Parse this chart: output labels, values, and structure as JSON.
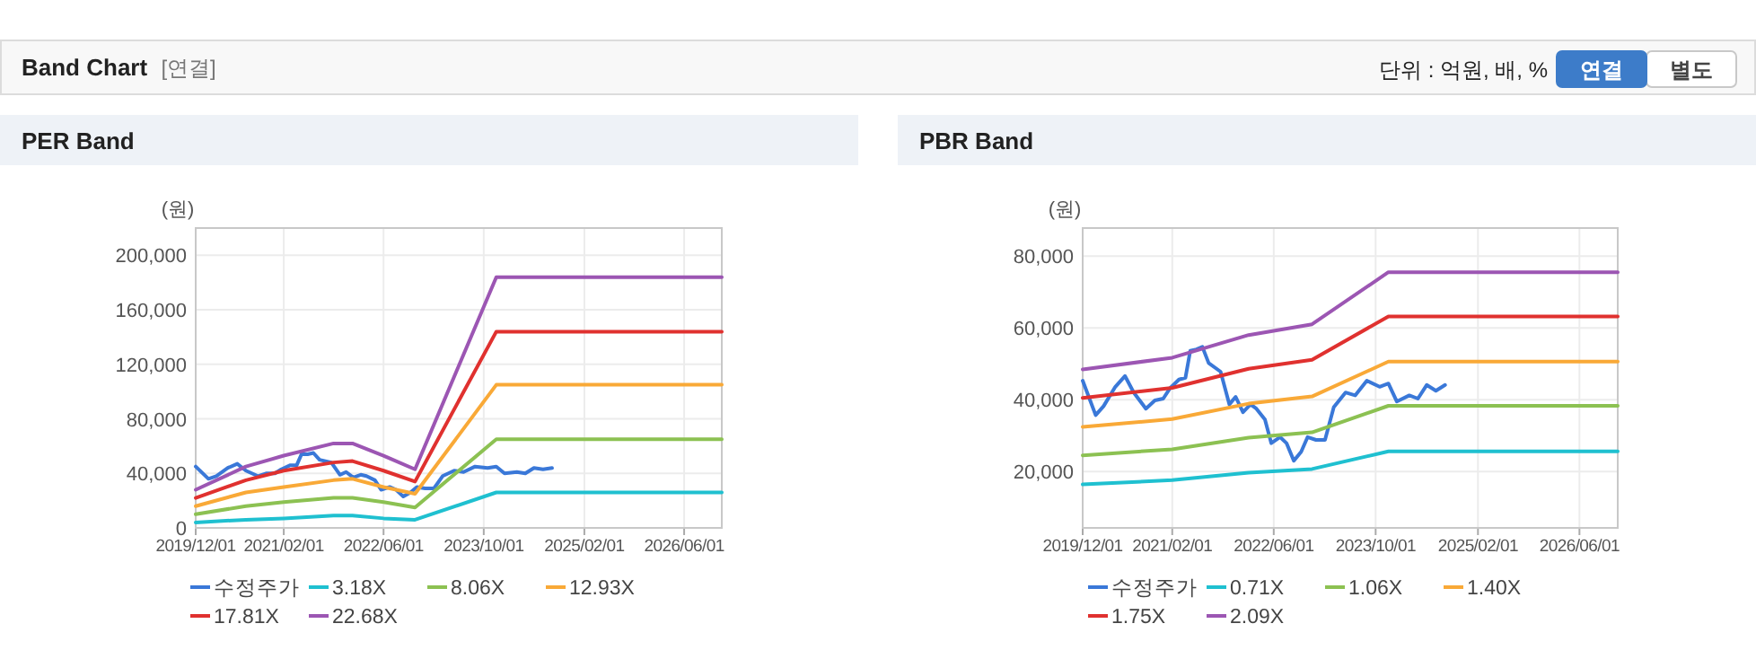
{
  "chart_data": [
    {
      "type": "other",
      "title": "Band Chart",
      "annotations": [
        "[연결]",
        "단위 : 억원, 배, %",
        "연결",
        "별도"
      ]
    },
    {
      "type": "line",
      "title": "PER Band",
      "ylabel": "(원)",
      "grid": true,
      "legend": "bottom",
      "xlim": [
        "2019-12-01",
        "2026-12-01"
      ],
      "xticks": [
        {
          "value": "2019-12-01",
          "label": "2019/12/01"
        },
        {
          "value": "2021-02-01",
          "label": "2021/02/01"
        },
        {
          "value": "2022-06-01",
          "label": "2022/06/01"
        },
        {
          "value": "2023-10-01",
          "label": "2023/10/01"
        },
        {
          "value": "2025-02-01",
          "label": "2025/02/01"
        },
        {
          "value": "2026-06-01",
          "label": "2026/06/01"
        }
      ],
      "ylim": [
        0,
        220000
      ],
      "yticks": [
        0,
        {
          "value": 40000,
          "label": "40,000"
        },
        {
          "value": 80000,
          "label": "80,000"
        },
        {
          "value": 120000,
          "label": "120,000"
        },
        {
          "value": 160000,
          "label": "160,000"
        },
        {
          "value": 200000,
          "label": "200,000"
        }
      ],
      "series": [
        {
          "name": "수정주가",
          "color": "#3a78d8",
          "x": [
            "2019-12-01",
            "2020-02-01",
            "2020-03-10",
            "2020-05-05",
            "2020-06-20",
            "2020-08-01",
            "2020-09-28",
            "2020-11-10",
            "2020-12-20",
            "2021-01-20",
            "2021-03-05",
            "2021-04-05",
            "2021-04-28",
            "2021-05-28",
            "2021-06-25",
            "2021-07-25",
            "2021-09-20",
            "2021-11-01",
            "2021-12-01",
            "2022-01-05",
            "2022-02-10",
            "2022-03-10",
            "2022-04-20",
            "2022-05-20",
            "2022-07-01",
            "2022-08-01",
            "2022-09-05",
            "2022-10-10",
            "2022-11-10",
            "2022-12-20",
            "2023-02-01",
            "2023-03-15",
            "2023-05-10",
            "2023-06-25",
            "2023-08-20",
            "2023-10-20",
            "2023-12-01",
            "2024-01-10",
            "2024-03-10",
            "2024-04-20",
            "2024-06-01",
            "2024-07-15",
            "2024-08-28"
          ],
          "values": [
            45000,
            36000,
            38000,
            44000,
            47000,
            42000,
            38000,
            40000,
            40000,
            43000,
            46000,
            46000,
            54000,
            54000,
            55000,
            50000,
            48000,
            39000,
            41000,
            37000,
            39000,
            38000,
            35000,
            28000,
            30000,
            28000,
            23000,
            26000,
            30000,
            29000,
            29000,
            38000,
            42000,
            41000,
            45000,
            44000,
            45000,
            40000,
            41000,
            40000,
            44000,
            43000,
            44000
          ]
        },
        {
          "name": "3.18X",
          "color": "#1fc0d0",
          "x": [
            "2019-12-01",
            "2020-08-01",
            "2021-02-01",
            "2021-10-01",
            "2022-01-01",
            "2022-06-01",
            "2022-11-01",
            "2023-12-01",
            "2026-12-01"
          ],
          "values": [
            4000,
            6000,
            7000,
            9000,
            9000,
            7000,
            6000,
            26000,
            26000
          ]
        },
        {
          "name": "8.06X",
          "color": "#8cc152",
          "x": [
            "2019-12-01",
            "2020-08-01",
            "2021-02-01",
            "2021-10-01",
            "2022-01-01",
            "2022-06-01",
            "2022-11-01",
            "2023-12-01",
            "2026-12-01"
          ],
          "values": [
            10000,
            16000,
            19000,
            22000,
            22000,
            19000,
            15000,
            65000,
            65000
          ]
        },
        {
          "name": "12.93X",
          "color": "#f9a937",
          "x": [
            "2019-12-01",
            "2020-08-01",
            "2021-02-01",
            "2021-10-01",
            "2022-01-01",
            "2022-06-01",
            "2022-11-01",
            "2023-12-01",
            "2026-12-01"
          ],
          "values": [
            16000,
            26000,
            30000,
            35000,
            36000,
            30000,
            25000,
            105000,
            105000
          ]
        },
        {
          "name": "17.81X",
          "color": "#e0312f",
          "x": [
            "2019-12-01",
            "2020-08-01",
            "2021-02-01",
            "2021-10-01",
            "2022-01-01",
            "2022-06-01",
            "2022-11-01",
            "2023-12-01",
            "2026-12-01"
          ],
          "values": [
            22000,
            35000,
            42000,
            48000,
            49000,
            42000,
            34000,
            144000,
            144000
          ]
        },
        {
          "name": "22.68X",
          "color": "#9c56b3",
          "x": [
            "2019-12-01",
            "2020-08-01",
            "2021-02-01",
            "2021-10-01",
            "2022-01-01",
            "2022-06-01",
            "2022-11-01",
            "2023-12-01",
            "2026-12-01"
          ],
          "values": [
            28000,
            45000,
            53000,
            62000,
            62000,
            53000,
            43000,
            184000,
            184000
          ]
        }
      ]
    },
    {
      "type": "line",
      "title": "PBR Band",
      "ylabel": "(원)",
      "grid": true,
      "legend": "bottom",
      "xlim": [
        "2019-12-01",
        "2026-12-01"
      ],
      "xticks": [
        {
          "value": "2019-12-01",
          "label": "2019/12/01"
        },
        {
          "value": "2021-02-01",
          "label": "2021/02/01"
        },
        {
          "value": "2022-06-01",
          "label": "2022/06/01"
        },
        {
          "value": "2023-10-01",
          "label": "2023/10/01"
        },
        {
          "value": "2025-02-01",
          "label": "2025/02/01"
        },
        {
          "value": "2026-06-01",
          "label": "2026/06/01"
        }
      ],
      "ylim": [
        4300,
        87800
      ],
      "yticks": [
        {
          "value": 20000,
          "label": "20,000"
        },
        {
          "value": 40000,
          "label": "40,000"
        },
        {
          "value": 60000,
          "label": "60,000"
        },
        {
          "value": 80000,
          "label": "80,000"
        }
      ],
      "series": [
        {
          "name": "수정주가",
          "color": "#3a78d8",
          "x": [
            "2019-12-01",
            "2020-02-01",
            "2020-03-10",
            "2020-05-05",
            "2020-06-20",
            "2020-08-01",
            "2020-09-28",
            "2020-11-10",
            "2020-12-20",
            "2021-01-20",
            "2021-03-05",
            "2021-04-05",
            "2021-04-28",
            "2021-05-28",
            "2021-06-25",
            "2021-07-25",
            "2021-09-20",
            "2021-11-01",
            "2021-12-01",
            "2022-01-05",
            "2022-02-10",
            "2022-03-10",
            "2022-04-20",
            "2022-05-20",
            "2022-07-01",
            "2022-08-01",
            "2022-09-05",
            "2022-10-10",
            "2022-11-10",
            "2022-12-20",
            "2023-02-01",
            "2023-03-15",
            "2023-05-10",
            "2023-06-25",
            "2023-08-20",
            "2023-10-20",
            "2023-12-01",
            "2024-01-10",
            "2024-03-10",
            "2024-04-20",
            "2024-06-01",
            "2024-07-15",
            "2024-08-28"
          ],
          "values": [
            45300,
            35700,
            38200,
            43600,
            46600,
            42000,
            37500,
            39800,
            40300,
            43100,
            45600,
            46100,
            53600,
            54000,
            54700,
            50200,
            47800,
            38700,
            40800,
            36500,
            38700,
            37500,
            34500,
            27900,
            29600,
            27900,
            23000,
            25500,
            29600,
            28800,
            28800,
            37900,
            42000,
            41200,
            45300,
            43600,
            44500,
            39500,
            41200,
            40300,
            44100,
            42500,
            44100
          ]
        },
        {
          "name": "0.71X",
          "color": "#1fc0d0",
          "x": [
            "2019-12-01",
            "2021-02-01",
            "2022-02-01",
            "2022-12-01",
            "2023-12-01",
            "2026-12-01"
          ],
          "values": [
            16400,
            17600,
            19700,
            20700,
            25600,
            25600
          ]
        },
        {
          "name": "1.06X",
          "color": "#8cc152",
          "x": [
            "2019-12-01",
            "2021-02-01",
            "2022-02-01",
            "2022-12-01",
            "2023-12-01",
            "2026-12-01"
          ],
          "values": [
            24500,
            26200,
            29400,
            30900,
            38300,
            38300
          ]
        },
        {
          "name": "1.40X",
          "color": "#f9a937",
          "x": [
            "2019-12-01",
            "2021-02-01",
            "2022-02-01",
            "2022-12-01",
            "2023-12-01",
            "2026-12-01"
          ],
          "values": [
            32400,
            34600,
            38900,
            40900,
            50600,
            50600
          ]
        },
        {
          "name": "1.75X",
          "color": "#e0312f",
          "x": [
            "2019-12-01",
            "2021-02-01",
            "2022-02-01",
            "2022-12-01",
            "2023-12-01",
            "2026-12-01"
          ],
          "values": [
            40500,
            43300,
            48600,
            51100,
            63200,
            63200
          ]
        },
        {
          "name": "2.09X",
          "color": "#9c56b3",
          "x": [
            "2019-12-01",
            "2021-02-01",
            "2022-02-01",
            "2022-12-01",
            "2023-12-01",
            "2026-12-01"
          ],
          "values": [
            48400,
            51700,
            58000,
            61000,
            75500,
            75500
          ]
        }
      ]
    }
  ]
}
